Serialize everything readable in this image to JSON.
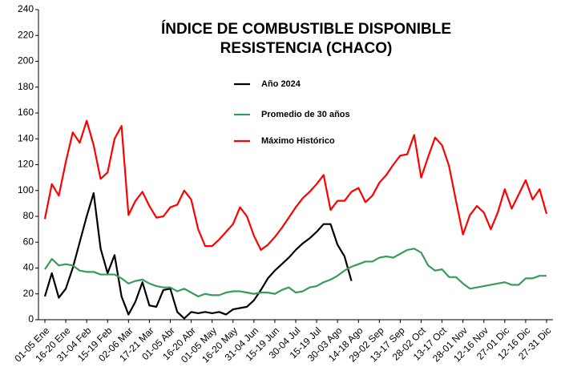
{
  "chart_data": {
    "type": "line",
    "title": [
      "ÍNDICE DE COMBUSTIBLE DISPONIBLE",
      "RESISTENCIA (CHACO)"
    ],
    "categories": [
      "01-05 Ene",
      null,
      null,
      "16-20 Ene",
      null,
      null,
      "31-04 Feb",
      null,
      null,
      "15-19 Feb",
      null,
      null,
      "02-06 Mar",
      null,
      null,
      "17-21 Mar",
      null,
      null,
      "01-05 Abr",
      null,
      null,
      "16-20 Abr",
      null,
      null,
      "01-05 May",
      null,
      null,
      "16-20 May",
      null,
      null,
      "31-04 Jun",
      null,
      null,
      "15-19 Jun",
      null,
      null,
      "30-04 Jul",
      null,
      null,
      "15-19 Jul",
      null,
      null,
      "30-03 Ago",
      null,
      null,
      "14-18 Ago",
      null,
      null,
      "29-02 Sep",
      null,
      null,
      "13-17 Sep",
      null,
      null,
      "28-02 Oct",
      null,
      null,
      "13-17 Oct",
      null,
      null,
      "28-01 Nov",
      null,
      null,
      "12-16 Nov",
      null,
      null,
      "27-01 Dic",
      null,
      null,
      "12-16 Dic",
      null,
      null,
      "27-31 Dic"
    ],
    "series": [
      {
        "name": "Año 2024",
        "color": "#000000",
        "values": [
          18,
          36,
          17,
          24,
          40,
          60,
          80,
          98,
          55,
          36,
          50,
          18,
          4,
          14,
          29,
          11,
          10,
          23,
          24,
          6,
          1,
          6,
          5,
          6,
          5,
          6,
          4,
          8,
          9,
          10,
          15,
          23,
          32,
          38,
          43,
          48,
          54,
          59,
          63,
          68,
          74,
          74,
          58,
          49,
          30,
          null,
          null,
          null,
          null,
          null,
          null,
          null,
          null,
          null,
          null,
          null,
          null,
          null,
          null,
          null,
          null,
          null,
          null,
          null,
          null,
          null,
          null,
          null,
          null,
          null,
          null,
          null,
          null
        ]
      },
      {
        "name": "Promedio de 30 años",
        "color": "#3a9a5a",
        "values": [
          39,
          47,
          42,
          43,
          42,
          38,
          37,
          37,
          35,
          35,
          35,
          32,
          28,
          30,
          31,
          28,
          26,
          25,
          25,
          22,
          24,
          21,
          18,
          20,
          19,
          19,
          21,
          22,
          22,
          21,
          20,
          21,
          21,
          20,
          23,
          25,
          21,
          22,
          25,
          26,
          29,
          31,
          34,
          38,
          41,
          43,
          45,
          45,
          48,
          49,
          48,
          51,
          54,
          55,
          52,
          42,
          38,
          39,
          33,
          33,
          28,
          24,
          25,
          26,
          27,
          28,
          29,
          27,
          27,
          32,
          32,
          34,
          34
        ]
      },
      {
        "name": "Máximo Histórico",
        "color": "#ff0000",
        "values": [
          78,
          105,
          96,
          122,
          145,
          137,
          154,
          135,
          109,
          114,
          140,
          150,
          81,
          92,
          99,
          88,
          79,
          80,
          87,
          89,
          100,
          93,
          70,
          57,
          57,
          62,
          68,
          74,
          87,
          80,
          65,
          54,
          58,
          64,
          71,
          79,
          87,
          94,
          99,
          105,
          112,
          85,
          92,
          92,
          99,
          102,
          91,
          96,
          106,
          112,
          120,
          127,
          128,
          143,
          110,
          126,
          141,
          135,
          119,
          92,
          66,
          81,
          88,
          83,
          70,
          83,
          101,
          86,
          97,
          108,
          93,
          101,
          82
        ]
      }
    ],
    "ylim": [
      0,
      240
    ],
    "yticks": [
      0,
      20,
      40,
      60,
      80,
      100,
      120,
      140,
      160,
      180,
      200,
      220,
      240
    ]
  }
}
